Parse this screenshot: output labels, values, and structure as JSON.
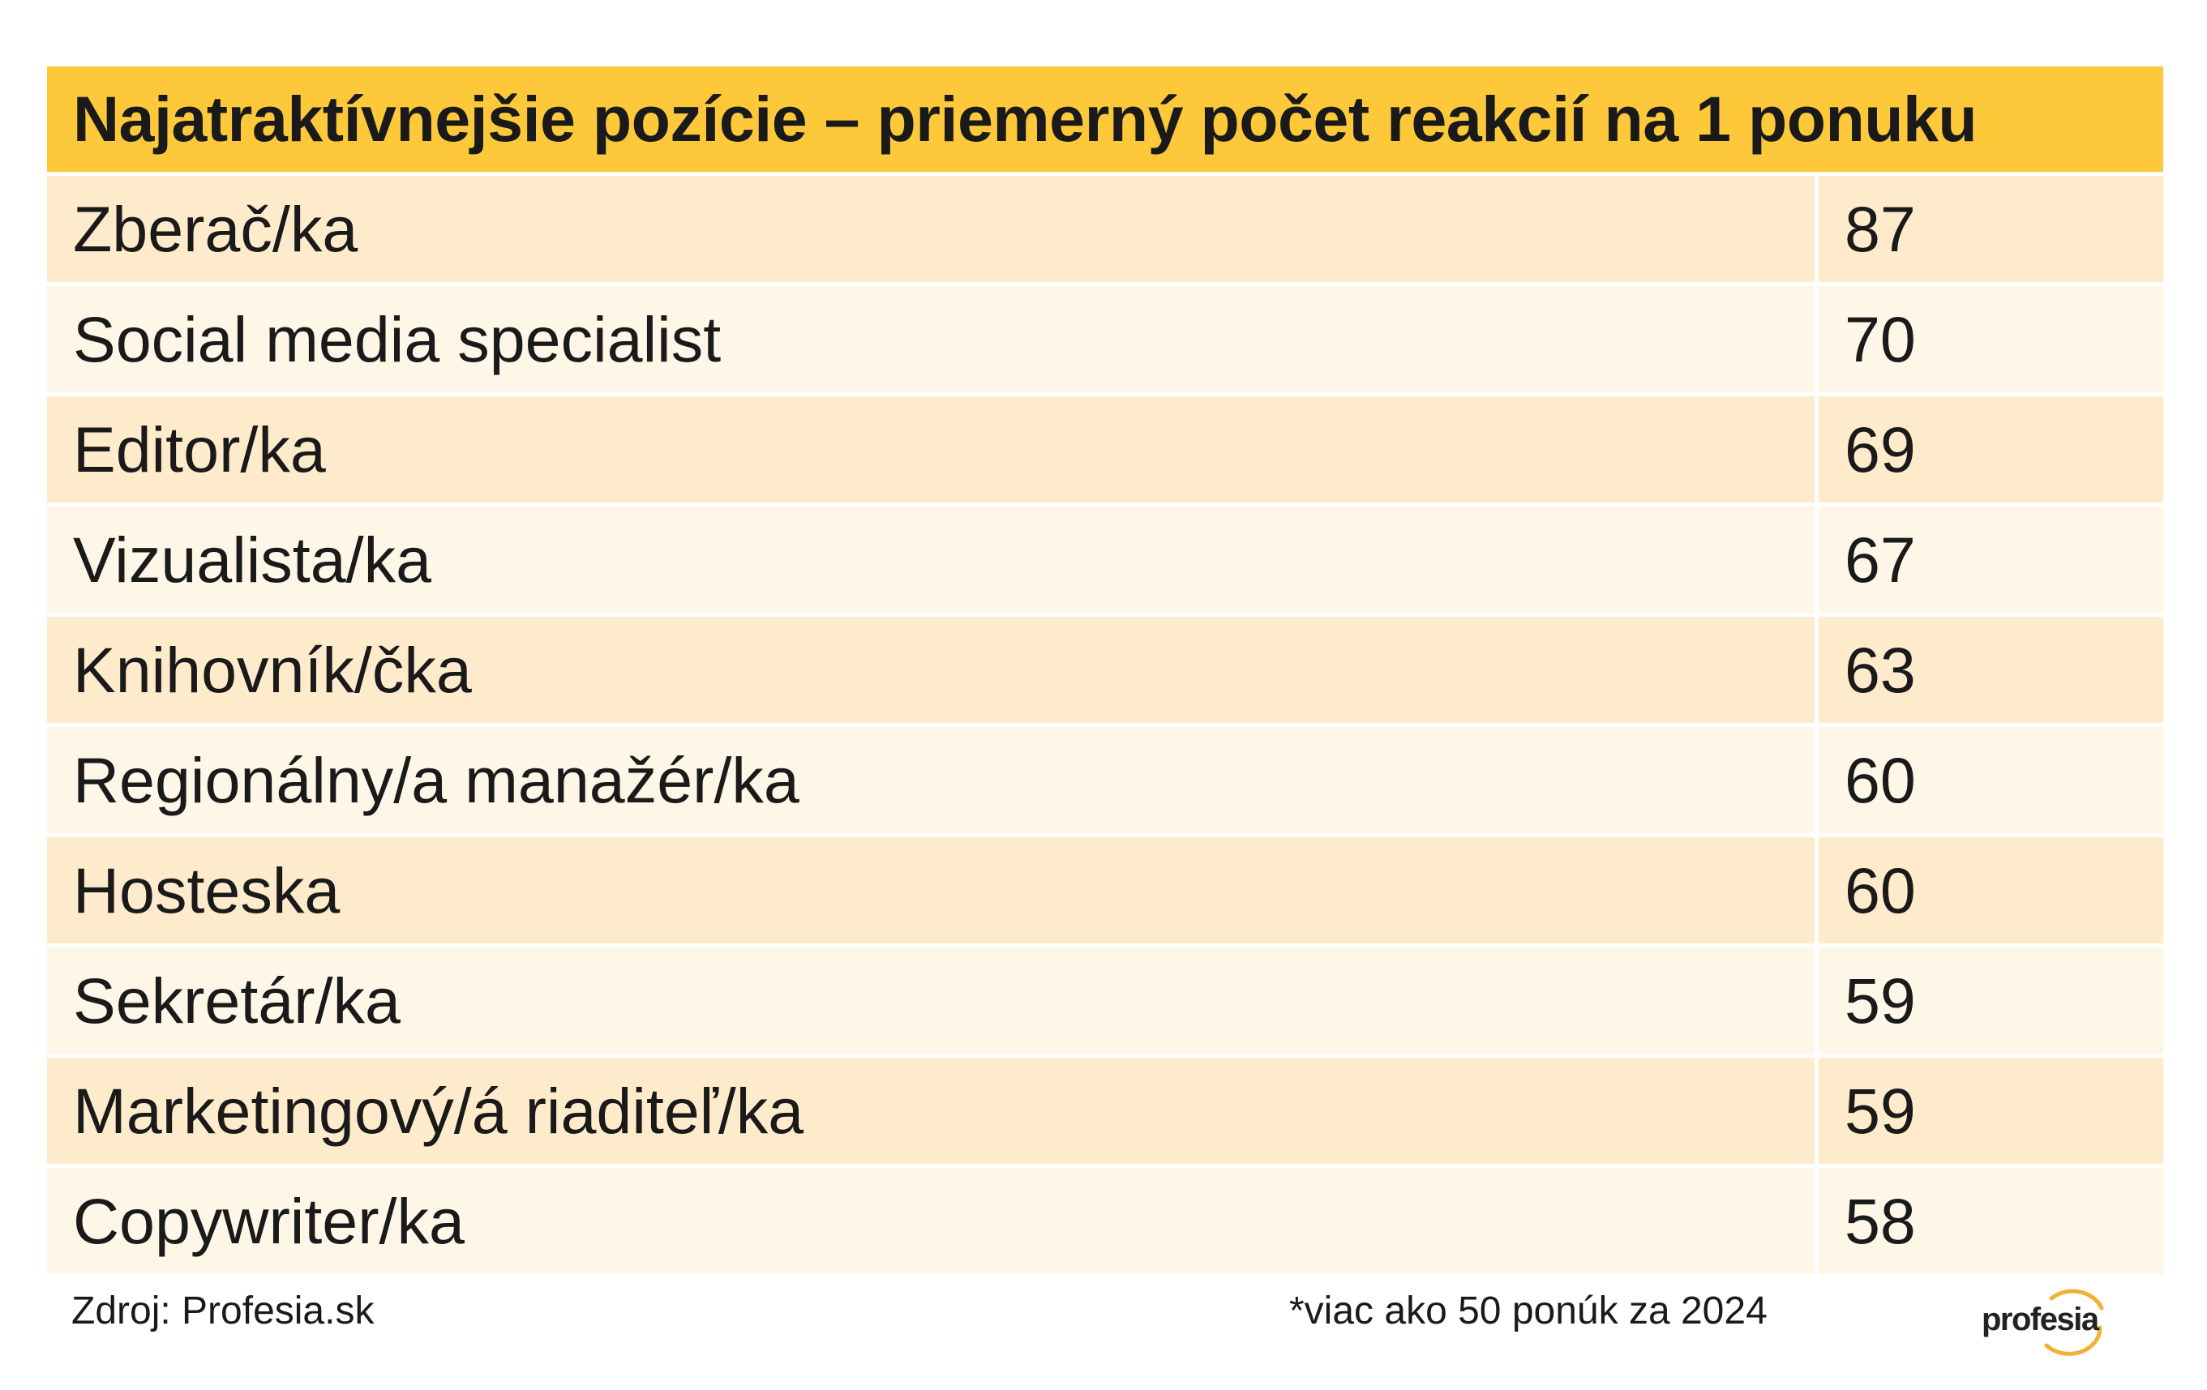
{
  "colors": {
    "header_bg": "#FDC93B",
    "row_dark": "#FEEBCB",
    "row_light": "#FEF6E7",
    "logo_ring": "#F2B134"
  },
  "chart_data": {
    "type": "table",
    "title": "Najatraktívnejšie pozície – priemerný počet reakcií na 1 ponuku",
    "rows": [
      {
        "label": "Zberač/ka",
        "value": 87
      },
      {
        "label": "Social media specialist",
        "value": 70
      },
      {
        "label": "Editor/ka",
        "value": 69
      },
      {
        "label": "Vizualista/ka",
        "value": 67
      },
      {
        "label": "Knihovník/čka",
        "value": 63
      },
      {
        "label": "Regionálny/a manažér/ka",
        "value": 60
      },
      {
        "label": "Hosteska",
        "value": 60
      },
      {
        "label": "Sekretár/ka",
        "value": 59
      },
      {
        "label": "Marketingový/á riaditeľ/ka",
        "value": 59
      },
      {
        "label": "Copywriter/ka",
        "value": 58
      }
    ]
  },
  "footer": {
    "source": "Zdroj: Profesia.sk",
    "note": "*viac ako 50 ponúk za 2024"
  },
  "logo": {
    "text": "profesia"
  }
}
